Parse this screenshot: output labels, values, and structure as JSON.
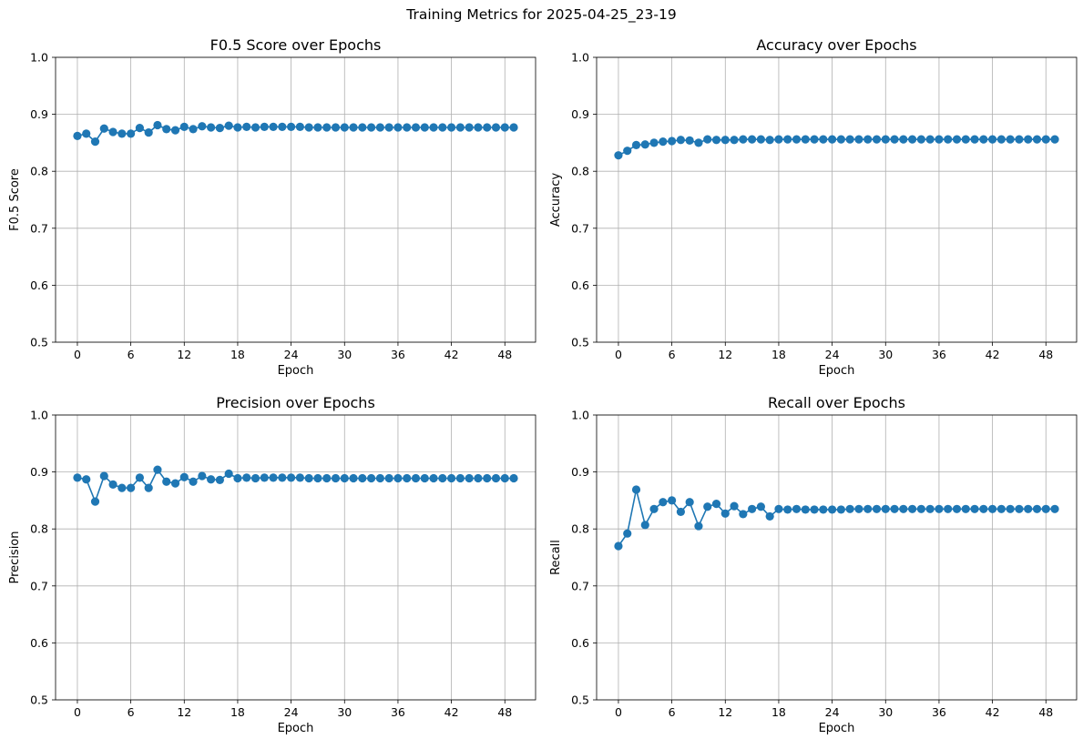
{
  "figure_title": "Training Metrics for 2025-04-25_23-19",
  "chart_data": [
    {
      "type": "line",
      "title": "F0.5 Score over Epochs",
      "xlabel": "Epoch",
      "ylabel": "F0.5 Score",
      "xlim": [
        -2.45,
        51.45
      ],
      "ylim": [
        0.5,
        1.0
      ],
      "xticks": [
        0,
        6,
        12,
        18,
        24,
        30,
        36,
        42,
        48
      ],
      "yticks": [
        0.5,
        0.6,
        0.7,
        0.8,
        0.9,
        1.0
      ],
      "ytick_labels": [
        "0.5",
        "0.6",
        "0.7",
        "0.8",
        "0.9",
        "1.0"
      ],
      "grid": true,
      "marker": "circle",
      "color": "#1f77b4",
      "x": [
        0,
        1,
        2,
        3,
        4,
        5,
        6,
        7,
        8,
        9,
        10,
        11,
        12,
        13,
        14,
        15,
        16,
        17,
        18,
        19,
        20,
        21,
        22,
        23,
        24,
        25,
        26,
        27,
        28,
        29,
        30,
        31,
        32,
        33,
        34,
        35,
        36,
        37,
        38,
        39,
        40,
        41,
        42,
        43,
        44,
        45,
        46,
        47,
        48,
        49
      ],
      "values": [
        0.862,
        0.866,
        0.852,
        0.875,
        0.869,
        0.866,
        0.866,
        0.876,
        0.868,
        0.881,
        0.874,
        0.872,
        0.878,
        0.874,
        0.879,
        0.877,
        0.876,
        0.88,
        0.877,
        0.878,
        0.877,
        0.878,
        0.878,
        0.878,
        0.878,
        0.878,
        0.877,
        0.877,
        0.877,
        0.877,
        0.877,
        0.877,
        0.877,
        0.877,
        0.877,
        0.877,
        0.877,
        0.877,
        0.877,
        0.877,
        0.877,
        0.877,
        0.877,
        0.877,
        0.877,
        0.877,
        0.877,
        0.877,
        0.877,
        0.877
      ]
    },
    {
      "type": "line",
      "title": "Accuracy over Epochs",
      "xlabel": "Epoch",
      "ylabel": "Accuracy",
      "xlim": [
        -2.45,
        51.45
      ],
      "ylim": [
        0.5,
        1.0
      ],
      "xticks": [
        0,
        6,
        12,
        18,
        24,
        30,
        36,
        42,
        48
      ],
      "yticks": [
        0.5,
        0.6,
        0.7,
        0.8,
        0.9,
        1.0
      ],
      "ytick_labels": [
        "0.5",
        "0.6",
        "0.7",
        "0.8",
        "0.9",
        "1.0"
      ],
      "grid": true,
      "marker": "circle",
      "color": "#1f77b4",
      "x": [
        0,
        1,
        2,
        3,
        4,
        5,
        6,
        7,
        8,
        9,
        10,
        11,
        12,
        13,
        14,
        15,
        16,
        17,
        18,
        19,
        20,
        21,
        22,
        23,
        24,
        25,
        26,
        27,
        28,
        29,
        30,
        31,
        32,
        33,
        34,
        35,
        36,
        37,
        38,
        39,
        40,
        41,
        42,
        43,
        44,
        45,
        46,
        47,
        48,
        49
      ],
      "values": [
        0.828,
        0.836,
        0.846,
        0.847,
        0.85,
        0.852,
        0.853,
        0.855,
        0.854,
        0.85,
        0.856,
        0.855,
        0.855,
        0.855,
        0.856,
        0.856,
        0.856,
        0.855,
        0.856,
        0.856,
        0.856,
        0.856,
        0.856,
        0.856,
        0.856,
        0.856,
        0.856,
        0.856,
        0.856,
        0.856,
        0.856,
        0.856,
        0.856,
        0.856,
        0.856,
        0.856,
        0.856,
        0.856,
        0.856,
        0.856,
        0.856,
        0.856,
        0.856,
        0.856,
        0.856,
        0.856,
        0.856,
        0.856,
        0.856,
        0.856
      ]
    },
    {
      "type": "line",
      "title": "Precision over Epochs",
      "xlabel": "Epoch",
      "ylabel": "Precision",
      "xlim": [
        -2.45,
        51.45
      ],
      "ylim": [
        0.5,
        1.0
      ],
      "xticks": [
        0,
        6,
        12,
        18,
        24,
        30,
        36,
        42,
        48
      ],
      "yticks": [
        0.5,
        0.6,
        0.7,
        0.8,
        0.9,
        1.0
      ],
      "ytick_labels": [
        "0.5",
        "0.6",
        "0.7",
        "0.8",
        "0.9",
        "1.0"
      ],
      "grid": true,
      "marker": "circle",
      "color": "#1f77b4",
      "x": [
        0,
        1,
        2,
        3,
        4,
        5,
        6,
        7,
        8,
        9,
        10,
        11,
        12,
        13,
        14,
        15,
        16,
        17,
        18,
        19,
        20,
        21,
        22,
        23,
        24,
        25,
        26,
        27,
        28,
        29,
        30,
        31,
        32,
        33,
        34,
        35,
        36,
        37,
        38,
        39,
        40,
        41,
        42,
        43,
        44,
        45,
        46,
        47,
        48,
        49
      ],
      "values": [
        0.89,
        0.887,
        0.848,
        0.893,
        0.878,
        0.872,
        0.872,
        0.89,
        0.872,
        0.904,
        0.883,
        0.88,
        0.891,
        0.883,
        0.893,
        0.887,
        0.886,
        0.897,
        0.889,
        0.89,
        0.889,
        0.89,
        0.89,
        0.89,
        0.89,
        0.89,
        0.889,
        0.889,
        0.889,
        0.889,
        0.889,
        0.889,
        0.889,
        0.889,
        0.889,
        0.889,
        0.889,
        0.889,
        0.889,
        0.889,
        0.889,
        0.889,
        0.889,
        0.889,
        0.889,
        0.889,
        0.889,
        0.889,
        0.889,
        0.889
      ]
    },
    {
      "type": "line",
      "title": "Recall over Epochs",
      "xlabel": "Epoch",
      "ylabel": "Recall",
      "xlim": [
        -2.45,
        51.45
      ],
      "ylim": [
        0.5,
        1.0
      ],
      "xticks": [
        0,
        6,
        12,
        18,
        24,
        30,
        36,
        42,
        48
      ],
      "yticks": [
        0.5,
        0.6,
        0.7,
        0.8,
        0.9,
        1.0
      ],
      "ytick_labels": [
        "0.5",
        "0.6",
        "0.7",
        "0.8",
        "0.9",
        "1.0"
      ],
      "grid": true,
      "marker": "circle",
      "color": "#1f77b4",
      "x": [
        0,
        1,
        2,
        3,
        4,
        5,
        6,
        7,
        8,
        9,
        10,
        11,
        12,
        13,
        14,
        15,
        16,
        17,
        18,
        19,
        20,
        21,
        22,
        23,
        24,
        25,
        26,
        27,
        28,
        29,
        30,
        31,
        32,
        33,
        34,
        35,
        36,
        37,
        38,
        39,
        40,
        41,
        42,
        43,
        44,
        45,
        46,
        47,
        48,
        49
      ],
      "values": [
        0.77,
        0.792,
        0.869,
        0.807,
        0.835,
        0.847,
        0.85,
        0.83,
        0.847,
        0.805,
        0.839,
        0.844,
        0.827,
        0.84,
        0.826,
        0.835,
        0.839,
        0.822,
        0.835,
        0.834,
        0.835,
        0.834,
        0.834,
        0.834,
        0.834,
        0.834,
        0.835,
        0.835,
        0.835,
        0.835,
        0.835,
        0.835,
        0.835,
        0.835,
        0.835,
        0.835,
        0.835,
        0.835,
        0.835,
        0.835,
        0.835,
        0.835,
        0.835,
        0.835,
        0.835,
        0.835,
        0.835,
        0.835,
        0.835,
        0.835
      ]
    }
  ]
}
